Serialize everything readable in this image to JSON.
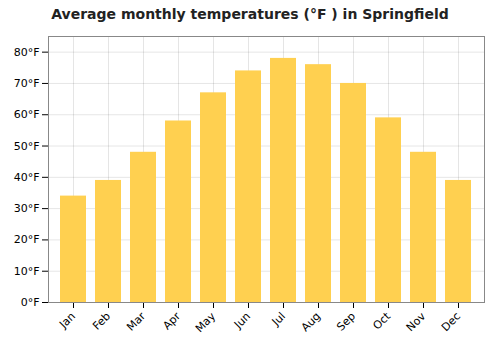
{
  "chart_data": {
    "type": "bar",
    "title": "Average monthly temperatures (°F ) in Springfield",
    "categories": [
      "Jan",
      "Feb",
      "Mar",
      "Apr",
      "May",
      "Jun",
      "Jul",
      "Aug",
      "Sep",
      "Oct",
      "Nov",
      "Dec"
    ],
    "values": [
      34,
      39,
      48,
      58,
      67,
      74,
      78,
      76,
      70,
      59,
      48,
      39
    ],
    "color": "#FFD050",
    "ylim": [
      0,
      85
    ],
    "yticks": [
      {
        "value": 0,
        "label": "0°F"
      },
      {
        "value": 10,
        "label": "10°F"
      },
      {
        "value": 20,
        "label": "20°F"
      },
      {
        "value": 30,
        "label": "30°F"
      },
      {
        "value": 40,
        "label": "40°F"
      },
      {
        "value": 50,
        "label": "50°F"
      },
      {
        "value": 60,
        "label": "60°F"
      },
      {
        "value": 70,
        "label": "70°F"
      },
      {
        "value": 80,
        "label": "80°F"
      }
    ],
    "grid": true
  }
}
